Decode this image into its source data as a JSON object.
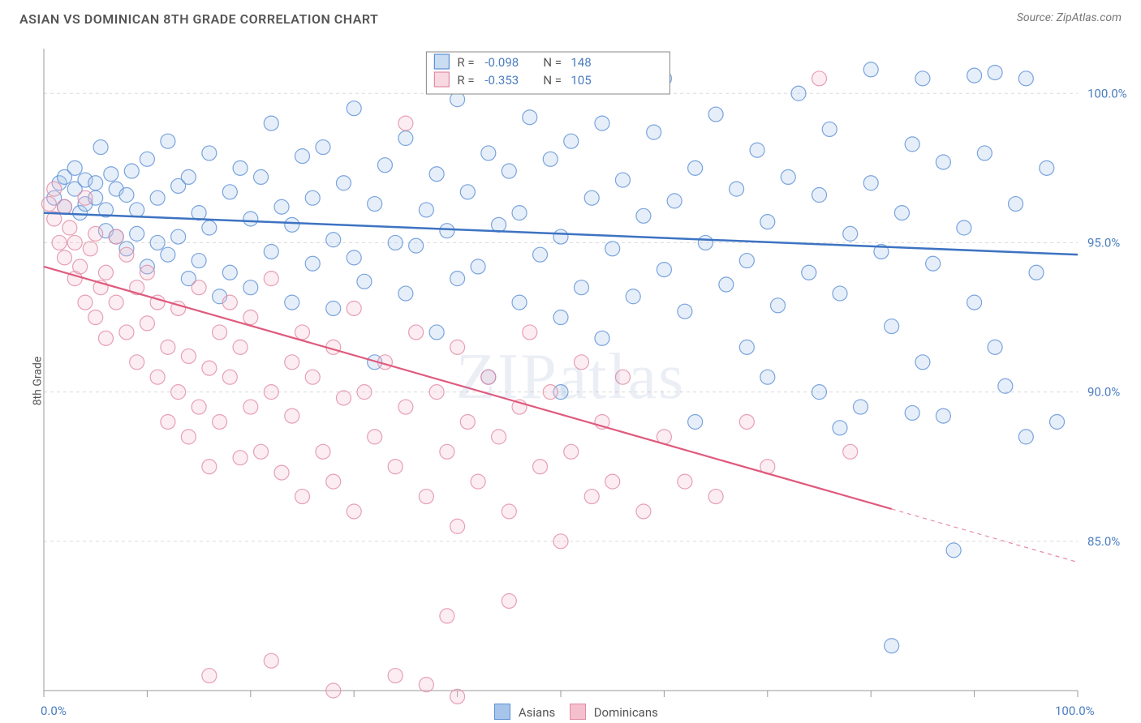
{
  "title": "ASIAN VS DOMINICAN 8TH GRADE CORRELATION CHART",
  "source": "Source: ZipAtlas.com",
  "watermark": "ZIPatlas",
  "y_axis_label": "8th Grade",
  "chart": {
    "type": "scatter",
    "background_color": "#ffffff",
    "grid_color": "#dcdcdc",
    "axis_line_color": "#999999",
    "plot_border_color": "#cccccc",
    "xlim": [
      0,
      100
    ],
    "ylim": [
      80,
      101.5
    ],
    "x_ticks_minor": [
      0,
      10,
      20,
      30,
      40,
      50,
      60,
      70,
      80,
      90,
      100
    ],
    "x_tick_labels": [
      {
        "v": 0,
        "label": "0.0%"
      },
      {
        "v": 100,
        "label": "100.0%"
      }
    ],
    "y_ticks": [
      {
        "v": 85,
        "label": "85.0%"
      },
      {
        "v": 90,
        "label": "90.0%"
      },
      {
        "v": 95,
        "label": "95.0%"
      },
      {
        "v": 100,
        "label": "100.0%"
      }
    ],
    "y_tick_color": "#4a7dbf",
    "y_tick_fontsize": 15,
    "marker_radius": 9,
    "marker_stroke_width": 1.2,
    "marker_fill_opacity": 0.28,
    "series": [
      {
        "name": "Asians",
        "color_stroke": "#5b8fd6",
        "color_fill": "#a7c5ea",
        "trend": {
          "y0": 96.0,
          "y100": 94.6,
          "x_solid_end": 100,
          "line_color": "#3d73c2",
          "line_width": 2.5
        },
        "R": "-0.098",
        "N": "148",
        "points": [
          [
            1,
            96.5
          ],
          [
            1.5,
            97.0
          ],
          [
            2,
            96.2
          ],
          [
            2,
            97.2
          ],
          [
            3,
            96.8
          ],
          [
            3,
            97.5
          ],
          [
            3.5,
            96.0
          ],
          [
            4,
            97.1
          ],
          [
            4,
            96.3
          ],
          [
            5,
            97.0
          ],
          [
            5,
            96.5
          ],
          [
            5.5,
            98.2
          ],
          [
            6,
            96.1
          ],
          [
            6,
            95.4
          ],
          [
            6.5,
            97.3
          ],
          [
            7,
            96.8
          ],
          [
            7,
            95.2
          ],
          [
            8,
            96.6
          ],
          [
            8,
            94.8
          ],
          [
            8.5,
            97.4
          ],
          [
            9,
            95.3
          ],
          [
            9,
            96.1
          ],
          [
            10,
            97.8
          ],
          [
            10,
            94.2
          ],
          [
            11,
            96.5
          ],
          [
            11,
            95.0
          ],
          [
            12,
            98.4
          ],
          [
            12,
            94.6
          ],
          [
            13,
            95.2
          ],
          [
            13,
            96.9
          ],
          [
            14,
            93.8
          ],
          [
            14,
            97.2
          ],
          [
            15,
            96.0
          ],
          [
            15,
            94.4
          ],
          [
            16,
            98.0
          ],
          [
            16,
            95.5
          ],
          [
            17,
            93.2
          ],
          [
            18,
            96.7
          ],
          [
            18,
            94.0
          ],
          [
            19,
            97.5
          ],
          [
            20,
            95.8
          ],
          [
            20,
            93.5
          ],
          [
            21,
            97.2
          ],
          [
            22,
            94.7
          ],
          [
            22,
            99.0
          ],
          [
            23,
            96.2
          ],
          [
            24,
            93.0
          ],
          [
            24,
            95.6
          ],
          [
            25,
            97.9
          ],
          [
            26,
            94.3
          ],
          [
            26,
            96.5
          ],
          [
            27,
            98.2
          ],
          [
            28,
            92.8
          ],
          [
            28,
            95.1
          ],
          [
            29,
            97.0
          ],
          [
            30,
            94.5
          ],
          [
            30,
            99.5
          ],
          [
            31,
            93.7
          ],
          [
            32,
            96.3
          ],
          [
            32,
            91.0
          ],
          [
            33,
            97.6
          ],
          [
            34,
            95.0
          ],
          [
            35,
            93.3
          ],
          [
            35,
            98.5
          ],
          [
            36,
            94.9
          ],
          [
            37,
            96.1
          ],
          [
            38,
            92.0
          ],
          [
            38,
            97.3
          ],
          [
            39,
            95.4
          ],
          [
            40,
            99.8
          ],
          [
            40,
            93.8
          ],
          [
            41,
            96.7
          ],
          [
            42,
            94.2
          ],
          [
            43,
            98.0
          ],
          [
            43,
            90.5
          ],
          [
            44,
            95.6
          ],
          [
            45,
            97.4
          ],
          [
            46,
            93.0
          ],
          [
            46,
            96.0
          ],
          [
            47,
            99.2
          ],
          [
            48,
            94.6
          ],
          [
            49,
            97.8
          ],
          [
            50,
            92.5
          ],
          [
            50,
            95.2
          ],
          [
            51,
            98.4
          ],
          [
            52,
            93.5
          ],
          [
            53,
            96.5
          ],
          [
            54,
            99.0
          ],
          [
            54,
            91.8
          ],
          [
            55,
            94.8
          ],
          [
            56,
            97.1
          ],
          [
            57,
            93.2
          ],
          [
            58,
            95.9
          ],
          [
            59,
            98.7
          ],
          [
            60,
            94.1
          ],
          [
            60,
            100.5
          ],
          [
            61,
            96.4
          ],
          [
            62,
            92.7
          ],
          [
            63,
            97.5
          ],
          [
            64,
            95.0
          ],
          [
            65,
            99.3
          ],
          [
            66,
            93.6
          ],
          [
            67,
            96.8
          ],
          [
            68,
            91.5
          ],
          [
            68,
            94.4
          ],
          [
            69,
            98.1
          ],
          [
            70,
            95.7
          ],
          [
            71,
            92.9
          ],
          [
            72,
            97.2
          ],
          [
            73,
            100.0
          ],
          [
            74,
            94.0
          ],
          [
            75,
            96.6
          ],
          [
            75,
            90.0
          ],
          [
            76,
            98.8
          ],
          [
            77,
            93.3
          ],
          [
            78,
            95.3
          ],
          [
            79,
            89.5
          ],
          [
            80,
            97.0
          ],
          [
            80,
            100.8
          ],
          [
            81,
            94.7
          ],
          [
            82,
            92.2
          ],
          [
            83,
            96.0
          ],
          [
            84,
            89.3
          ],
          [
            84,
            98.3
          ],
          [
            85,
            91.0
          ],
          [
            85,
            100.5
          ],
          [
            86,
            94.3
          ],
          [
            87,
            89.2
          ],
          [
            87,
            97.7
          ],
          [
            88,
            84.7
          ],
          [
            89,
            95.5
          ],
          [
            90,
            93.0
          ],
          [
            90,
            100.6
          ],
          [
            91,
            98.0
          ],
          [
            92,
            91.5
          ],
          [
            92,
            100.7
          ],
          [
            93,
            90.2
          ],
          [
            94,
            96.3
          ],
          [
            95,
            88.5
          ],
          [
            95,
            100.5
          ],
          [
            96,
            94.0
          ],
          [
            97,
            97.5
          ],
          [
            98,
            89.0
          ],
          [
            82,
            81.5
          ],
          [
            63,
            89.0
          ],
          [
            70,
            90.5
          ],
          [
            77,
            88.8
          ],
          [
            50,
            90.0
          ]
        ]
      },
      {
        "name": "Dominicans",
        "color_stroke": "#e08aa2",
        "color_fill": "#f4c0cf",
        "trend": {
          "y0": 94.2,
          "y100": 84.3,
          "x_solid_end": 82,
          "line_color": "#e05a7e",
          "line_width": 2.2
        },
        "R": "-0.353",
        "N": "105",
        "points": [
          [
            0.5,
            96.3
          ],
          [
            1,
            95.8
          ],
          [
            1,
            96.8
          ],
          [
            1.5,
            95.0
          ],
          [
            2,
            96.2
          ],
          [
            2,
            94.5
          ],
          [
            2.5,
            95.5
          ],
          [
            3,
            93.8
          ],
          [
            3,
            95.0
          ],
          [
            3.5,
            94.2
          ],
          [
            4,
            96.5
          ],
          [
            4,
            93.0
          ],
          [
            4.5,
            94.8
          ],
          [
            5,
            92.5
          ],
          [
            5,
            95.3
          ],
          [
            5.5,
            93.5
          ],
          [
            6,
            91.8
          ],
          [
            6,
            94.0
          ],
          [
            7,
            93.0
          ],
          [
            7,
            95.2
          ],
          [
            8,
            92.0
          ],
          [
            8,
            94.6
          ],
          [
            9,
            91.0
          ],
          [
            9,
            93.5
          ],
          [
            10,
            92.3
          ],
          [
            10,
            94.0
          ],
          [
            11,
            90.5
          ],
          [
            11,
            93.0
          ],
          [
            12,
            91.5
          ],
          [
            12,
            89.0
          ],
          [
            13,
            92.8
          ],
          [
            13,
            90.0
          ],
          [
            14,
            88.5
          ],
          [
            14,
            91.2
          ],
          [
            15,
            93.5
          ],
          [
            15,
            89.5
          ],
          [
            16,
            90.8
          ],
          [
            16,
            87.5
          ],
          [
            17,
            92.0
          ],
          [
            17,
            89.0
          ],
          [
            18,
            90.5
          ],
          [
            18,
            93.0
          ],
          [
            19,
            87.8
          ],
          [
            19,
            91.5
          ],
          [
            20,
            89.5
          ],
          [
            20,
            92.5
          ],
          [
            21,
            88.0
          ],
          [
            22,
            90.0
          ],
          [
            22,
            93.8
          ],
          [
            23,
            87.3
          ],
          [
            24,
            91.0
          ],
          [
            24,
            89.2
          ],
          [
            25,
            92.0
          ],
          [
            25,
            86.5
          ],
          [
            26,
            90.5
          ],
          [
            27,
            88.0
          ],
          [
            28,
            91.5
          ],
          [
            28,
            87.0
          ],
          [
            29,
            89.8
          ],
          [
            30,
            92.8
          ],
          [
            30,
            86.0
          ],
          [
            31,
            90.0
          ],
          [
            32,
            88.5
          ],
          [
            33,
            91.0
          ],
          [
            34,
            87.5
          ],
          [
            35,
            89.5
          ],
          [
            35,
            99.0
          ],
          [
            36,
            92.0
          ],
          [
            37,
            86.5
          ],
          [
            38,
            90.0
          ],
          [
            39,
            88.0
          ],
          [
            40,
            91.5
          ],
          [
            40,
            85.5
          ],
          [
            41,
            89.0
          ],
          [
            42,
            87.0
          ],
          [
            43,
            90.5
          ],
          [
            44,
            88.5
          ],
          [
            45,
            86.0
          ],
          [
            46,
            89.5
          ],
          [
            47,
            92.0
          ],
          [
            48,
            87.5
          ],
          [
            49,
            90.0
          ],
          [
            50,
            85.0
          ],
          [
            51,
            88.0
          ],
          [
            52,
            91.0
          ],
          [
            53,
            86.5
          ],
          [
            54,
            89.0
          ],
          [
            55,
            87.0
          ],
          [
            56,
            90.5
          ],
          [
            58,
            86.0
          ],
          [
            60,
            88.5
          ],
          [
            62,
            87.0
          ],
          [
            65,
            86.5
          ],
          [
            68,
            89.0
          ],
          [
            70,
            87.5
          ],
          [
            75,
            100.5
          ],
          [
            78,
            88.0
          ],
          [
            16,
            80.5
          ],
          [
            22,
            81.0
          ],
          [
            28,
            80.0
          ],
          [
            34,
            80.5
          ],
          [
            37,
            80.2
          ],
          [
            40,
            79.8
          ],
          [
            39,
            82.5
          ],
          [
            45,
            83.0
          ]
        ]
      }
    ],
    "legend_top": {
      "box_stroke": "#888888",
      "box_fill": "#ffffff",
      "label_color": "#555555",
      "value_color": "#4a7dbf"
    },
    "legend_bottom": {
      "asians_label": "Asians",
      "dominicans_label": "Dominicans"
    }
  }
}
